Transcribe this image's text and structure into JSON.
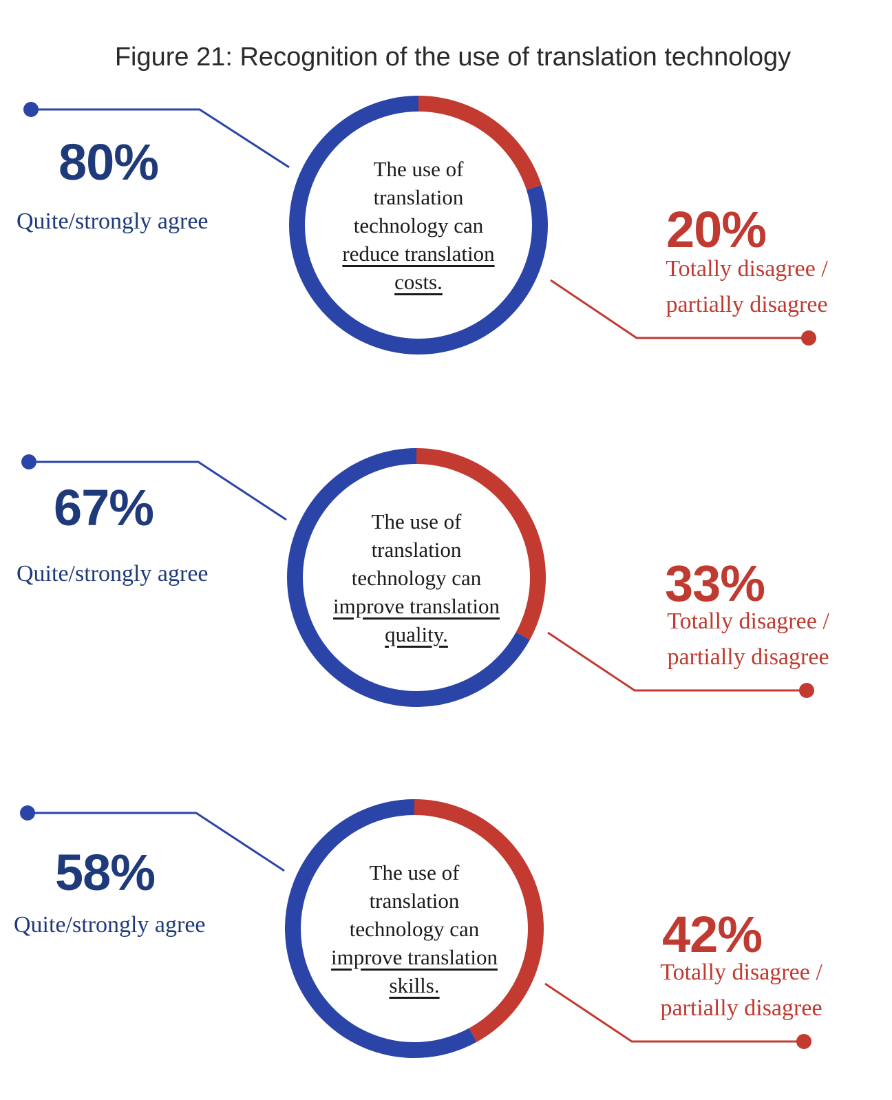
{
  "title": "Figure 21: Recognition of the use of translation technology",
  "colors": {
    "agree": "#2a44a8",
    "disagree": "#c23a30",
    "agree_text": "#1f3a7a",
    "disagree_text": "#bf3a30"
  },
  "panels": [
    {
      "agree_value": "80%",
      "agree_label": "Quite/strongly agree",
      "disagree_value": "20%",
      "disagree_label_1": "Totally disagree /",
      "disagree_label_2": "partially disagree",
      "text_1": "The use of",
      "text_2": "translation",
      "text_3": "technology can",
      "text_4": "reduce translation",
      "text_5": "costs."
    },
    {
      "agree_value": "67%",
      "agree_label": "Quite/strongly agree",
      "disagree_value": "33%",
      "disagree_label_1": "Totally disagree /",
      "disagree_label_2": "partially disagree",
      "text_1": "The use of",
      "text_2": "translation",
      "text_3": "technology can",
      "text_4": "improve translation",
      "text_5": "quality."
    },
    {
      "agree_value": "58%",
      "agree_label": "Quite/strongly agree",
      "disagree_value": "42%",
      "disagree_label_1": "Totally disagree /",
      "disagree_label_2": "partially disagree",
      "text_1": "The use of",
      "text_2": "translation",
      "text_3": "technology can",
      "text_4": "improve translation",
      "text_5": "skills."
    }
  ],
  "chart_data": [
    {
      "type": "pie",
      "categories": [
        "Quite/strongly agree",
        "Totally disagree / partially disagree"
      ],
      "values": [
        80,
        20
      ],
      "title": "The use of translation technology can reduce translation costs."
    },
    {
      "type": "pie",
      "categories": [
        "Quite/strongly agree",
        "Totally disagree / partially disagree"
      ],
      "values": [
        67,
        33
      ],
      "title": "The use of translation technology can improve translation quality."
    },
    {
      "type": "pie",
      "categories": [
        "Quite/strongly agree",
        "Totally disagree / partially disagree"
      ],
      "values": [
        58,
        42
      ],
      "title": "The use of translation technology can improve translation skills."
    }
  ]
}
